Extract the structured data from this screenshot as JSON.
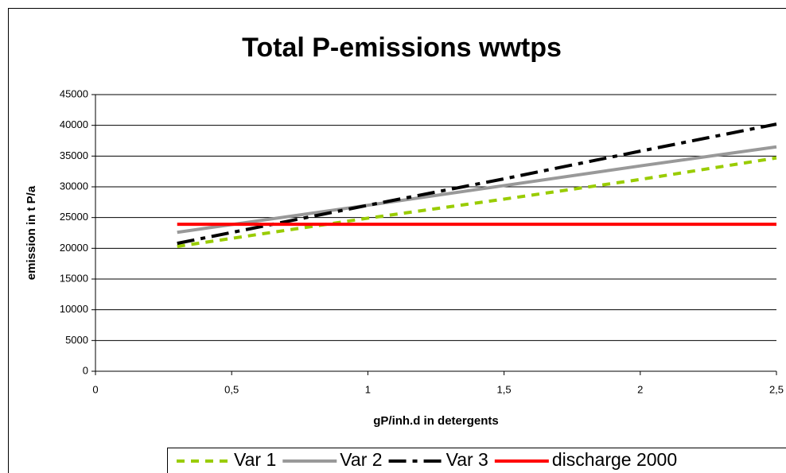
{
  "chart_data": {
    "type": "line",
    "title": "Total P-emissions wwtps",
    "x_label": "gP/inh.d in detergents",
    "y_label": "emission in t P/a",
    "x": [
      0.3,
      1,
      1.5,
      2,
      2.5
    ],
    "series": [
      {
        "name": "Var 1",
        "color": "#99cc00",
        "dash": "dash",
        "values": [
          20300,
          24900,
          28000,
          31200,
          34700
        ]
      },
      {
        "name": "Var 2",
        "color": "#999999",
        "dash": "solid",
        "values": [
          22600,
          27000,
          30200,
          33400,
          36500
        ]
      },
      {
        "name": "Var 3",
        "color": "#000000",
        "dash": "dashdot",
        "values": [
          20800,
          27000,
          31300,
          35800,
          40200
        ]
      },
      {
        "name": "discharge 2000",
        "color": "#ff0000",
        "dash": "solid",
        "values": [
          23900,
          23900,
          23900,
          23900,
          23900
        ]
      }
    ],
    "xlim": [
      0,
      2.5
    ],
    "xticks": [
      0,
      {
        "value": 0.5,
        "label": "0,5"
      },
      1,
      {
        "value": 1.5,
        "label": "1,5"
      },
      2,
      {
        "value": 2.5,
        "label": "2,5"
      }
    ],
    "ylim": [
      0,
      45000
    ],
    "yticks": [
      0,
      5000,
      10000,
      15000,
      20000,
      25000,
      30000,
      35000,
      40000,
      45000
    ],
    "grid": true,
    "legend": "bottom"
  }
}
